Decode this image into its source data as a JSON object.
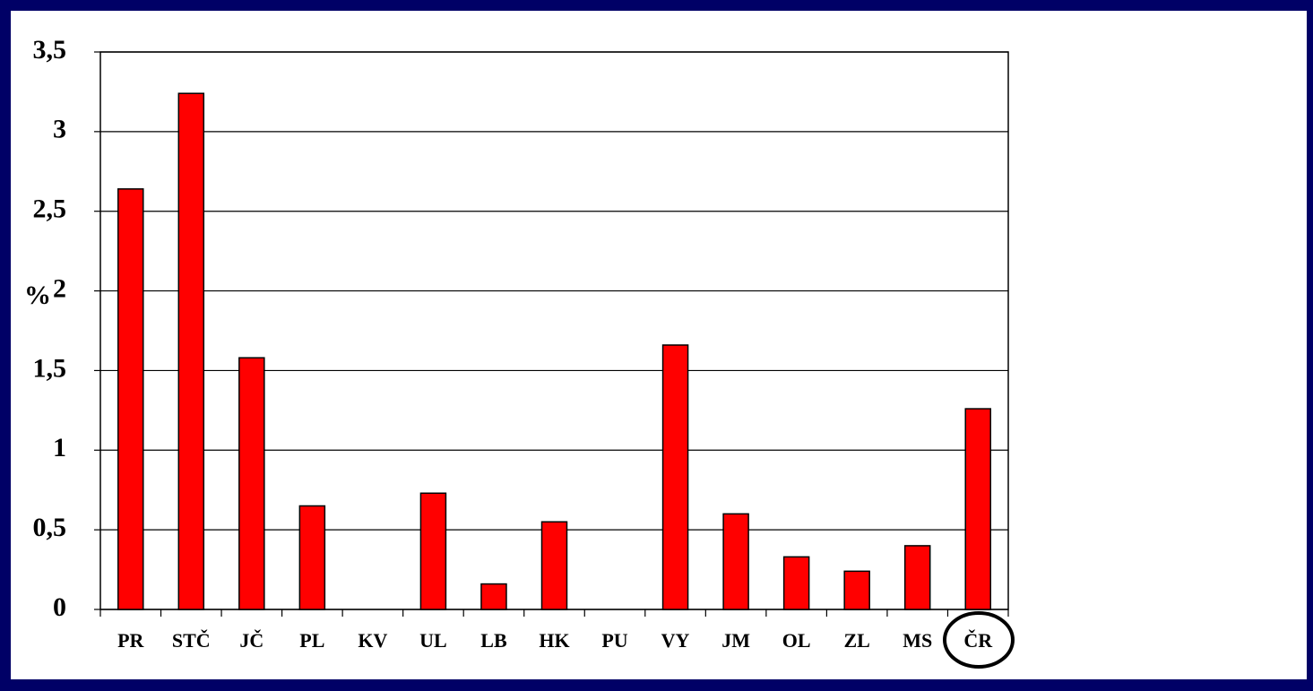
{
  "chart_data": {
    "type": "bar",
    "y_label": "%",
    "categories": [
      "PR",
      "STČ",
      "JČ",
      "PL",
      "KV",
      "UL",
      "LB",
      "HK",
      "PU",
      "VY",
      "JM",
      "OL",
      "ZL",
      "MS",
      "ČR"
    ],
    "values": [
      2.64,
      3.24,
      1.58,
      0.65,
      0,
      0.73,
      0.16,
      0.55,
      0,
      1.66,
      0.6,
      0.33,
      0.24,
      0.4,
      1.26
    ],
    "color": "#ff0000",
    "ylim": [
      0,
      3.5
    ],
    "yticks": [
      0,
      {
        "value": 0.5,
        "label": "0,5"
      },
      1,
      {
        "value": 1.5,
        "label": "1,5"
      },
      2,
      {
        "value": 2.5,
        "label": "2,5"
      },
      3,
      {
        "value": 3.5,
        "label": "3,5"
      }
    ],
    "grid": true
  }
}
